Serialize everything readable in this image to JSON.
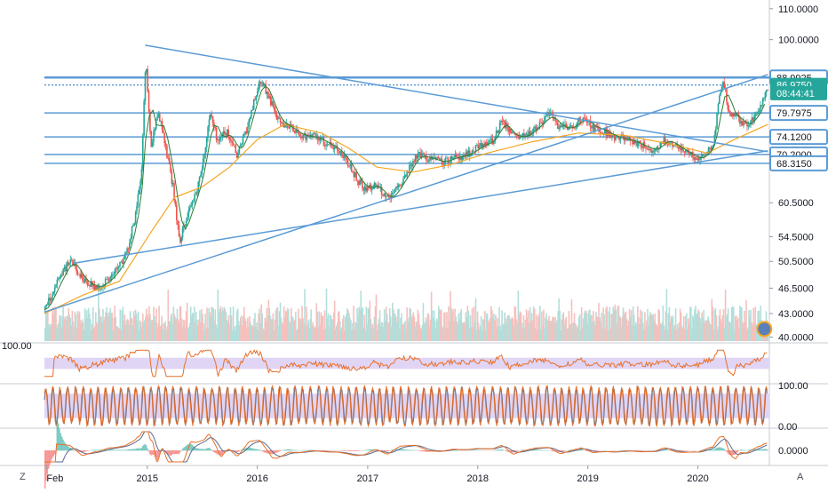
{
  "chart_data": [
    {
      "type": "candlestick",
      "title": "",
      "x_tick_labels": [
        "Feb",
        "2015",
        "2016",
        "2017",
        "2018",
        "2019",
        "2020"
      ],
      "x_tick_dates": [
        "2014-02-01",
        "2015-01-01",
        "2016-01-01",
        "2017-01-01",
        "2018-01-01",
        "2019-01-01",
        "2020-01-01"
      ],
      "x_range": [
        "2014-01-25",
        "2020-08-25"
      ],
      "y_scale": "log",
      "y_range": [
        39.5,
        113
      ],
      "y_tick_labels": [
        "110.0000",
        "100.0000",
        "60.5000",
        "54.5000",
        "50.5000",
        "46.5000",
        "43.0000",
        "40.0000"
      ],
      "price_labels": [
        {
          "text": "88.9925",
          "style": "outline"
        },
        {
          "text": "86.9750",
          "style": "green"
        },
        {
          "text": "08:44:41",
          "style": "green"
        },
        {
          "text": "79.7975",
          "style": "outline"
        },
        {
          "text": "74.1200",
          "style": "outline"
        },
        {
          "text": "70.2000",
          "style": "outline"
        },
        {
          "text": "68.3150",
          "style": "outline"
        }
      ],
      "horizontal_levels": [
        88.99,
        86.975,
        79.7975,
        74.12,
        70.2,
        68.315
      ],
      "trend_lines": [
        {
          "from": [
            "2014-01-25",
            43.2
          ],
          "to": [
            "2020-08-20",
            89.8
          ]
        },
        {
          "from": [
            "2014-05-01",
            50.2
          ],
          "to": [
            "2020-08-20",
            71.0
          ]
        },
        {
          "from": [
            "2014-12-25",
            98.3
          ],
          "to": [
            "2020-08-20",
            70.8
          ]
        }
      ],
      "price_path": [
        [
          "2014-01-25",
          43.5
        ],
        [
          "2014-03-15",
          48.0
        ],
        [
          "2014-04-20",
          50.8
        ],
        [
          "2014-06-01",
          47.5
        ],
        [
          "2014-07-20",
          46.5
        ],
        [
          "2014-09-10",
          48.5
        ],
        [
          "2014-10-20",
          51.5
        ],
        [
          "2014-11-20",
          58.0
        ],
        [
          "2014-12-10",
          66.0
        ],
        [
          "2014-12-25",
          93.5
        ],
        [
          "2015-01-10",
          72.0
        ],
        [
          "2015-02-05",
          80.0
        ],
        [
          "2015-03-01",
          71.5
        ],
        [
          "2015-03-25",
          63.5
        ],
        [
          "2015-04-15",
          53.5
        ],
        [
          "2015-05-10",
          58.0
        ],
        [
          "2015-06-10",
          62.5
        ],
        [
          "2015-07-10",
          70.5
        ],
        [
          "2015-07-25",
          80.5
        ],
        [
          "2015-08-20",
          73.0
        ],
        [
          "2015-09-20",
          75.5
        ],
        [
          "2015-10-25",
          70.0
        ],
        [
          "2015-11-25",
          76.0
        ],
        [
          "2015-12-20",
          83.0
        ],
        [
          "2016-01-10",
          88.5
        ],
        [
          "2016-02-05",
          84.0
        ],
        [
          "2016-03-05",
          78.0
        ],
        [
          "2016-04-10",
          76.5
        ],
        [
          "2016-05-20",
          74.5
        ],
        [
          "2016-07-10",
          74.0
        ],
        [
          "2016-08-20",
          72.5
        ],
        [
          "2016-09-25",
          71.0
        ],
        [
          "2016-10-25",
          68.5
        ],
        [
          "2016-11-25",
          65.0
        ],
        [
          "2016-12-25",
          63.0
        ],
        [
          "2017-01-25",
          64.0
        ],
        [
          "2017-02-20",
          62.0
        ],
        [
          "2017-03-10",
          61.0
        ],
        [
          "2017-04-10",
          63.5
        ],
        [
          "2017-05-10",
          66.5
        ],
        [
          "2017-06-10",
          70.0
        ],
        [
          "2017-07-20",
          69.5
        ],
        [
          "2017-09-01",
          68.5
        ],
        [
          "2017-10-10",
          69.5
        ],
        [
          "2017-11-20",
          70.0
        ],
        [
          "2017-12-25",
          71.5
        ],
        [
          "2018-02-20",
          73.5
        ],
        [
          "2018-03-20",
          78.0
        ],
        [
          "2018-04-20",
          74.5
        ],
        [
          "2018-06-01",
          74.0
        ],
        [
          "2018-07-15",
          76.5
        ],
        [
          "2018-08-25",
          79.5
        ],
        [
          "2018-09-25",
          76.5
        ],
        [
          "2018-11-01",
          76.0
        ],
        [
          "2018-12-10",
          78.5
        ],
        [
          "2019-01-15",
          76.5
        ],
        [
          "2019-02-20",
          75.5
        ],
        [
          "2019-04-01",
          74.0
        ],
        [
          "2019-05-15",
          73.5
        ],
        [
          "2019-07-01",
          72.0
        ],
        [
          "2019-08-10",
          71.0
        ],
        [
          "2019-09-10",
          73.5
        ],
        [
          "2019-10-10",
          72.5
        ],
        [
          "2019-11-10",
          71.0
        ],
        [
          "2019-12-10",
          70.0
        ],
        [
          "2020-01-01",
          69.0
        ],
        [
          "2020-01-25",
          70.5
        ],
        [
          "2020-02-20",
          72.5
        ],
        [
          "2020-03-12",
          85.0
        ],
        [
          "2020-03-25",
          87.5
        ],
        [
          "2020-04-10",
          80.0
        ],
        [
          "2020-05-10",
          78.5
        ],
        [
          "2020-06-10",
          76.5
        ],
        [
          "2020-07-05",
          79.0
        ],
        [
          "2020-07-25",
          81.0
        ],
        [
          "2020-08-10",
          86.0
        ],
        [
          "2020-08-20",
          86.975
        ]
      ],
      "moving_average_path": [
        [
          "2014-01-25",
          43.0
        ],
        [
          "2014-06-01",
          45.5
        ],
        [
          "2014-10-01",
          47.5
        ],
        [
          "2015-01-10",
          55.0
        ],
        [
          "2015-04-01",
          61.5
        ],
        [
          "2015-07-01",
          63.5
        ],
        [
          "2015-10-01",
          67.5
        ],
        [
          "2016-01-01",
          73.5
        ],
        [
          "2016-04-01",
          77.0
        ],
        [
          "2016-08-01",
          75.0
        ],
        [
          "2016-11-01",
          71.5
        ],
        [
          "2017-02-01",
          67.5
        ],
        [
          "2017-06-01",
          66.5
        ],
        [
          "2017-10-01",
          68.0
        ],
        [
          "2018-02-01",
          70.5
        ],
        [
          "2018-07-01",
          73.0
        ],
        [
          "2018-12-01",
          75.0
        ],
        [
          "2019-05-01",
          74.5
        ],
        [
          "2019-10-01",
          72.5
        ],
        [
          "2020-02-01",
          70.5
        ],
        [
          "2020-05-01",
          73.5
        ],
        [
          "2020-08-20",
          77.0
        ]
      ],
      "colors": {
        "up": "#26a69a",
        "down": "#ef5350",
        "trend": "#5b9bd5",
        "ma": "#f5a623",
        "ma_fast": "#2e7d32",
        "label_green": "#26a69a"
      }
    },
    {
      "type": "oscillator",
      "name": "",
      "y_tick_labels": [
        "100.00"
      ],
      "band": [
        35,
        65
      ],
      "colors": {
        "line": "#e8702a",
        "band": "#e1d5f5"
      }
    },
    {
      "type": "oscillator",
      "name": "",
      "y_tick_labels": [
        "100.00",
        "0.00"
      ],
      "y_range": [
        0,
        100
      ],
      "band": [
        20,
        80
      ],
      "colors": {
        "k": "#e8702a",
        "d": "#5a6b8c",
        "band": "#e1d5f5"
      }
    },
    {
      "type": "histogram",
      "name": "",
      "y_tick_labels": [
        "0.0000"
      ],
      "colors": {
        "line": "#e8702a",
        "signal": "#5a6b8c"
      }
    }
  ],
  "corner_buttons": {
    "left": "Z",
    "right": "A"
  }
}
